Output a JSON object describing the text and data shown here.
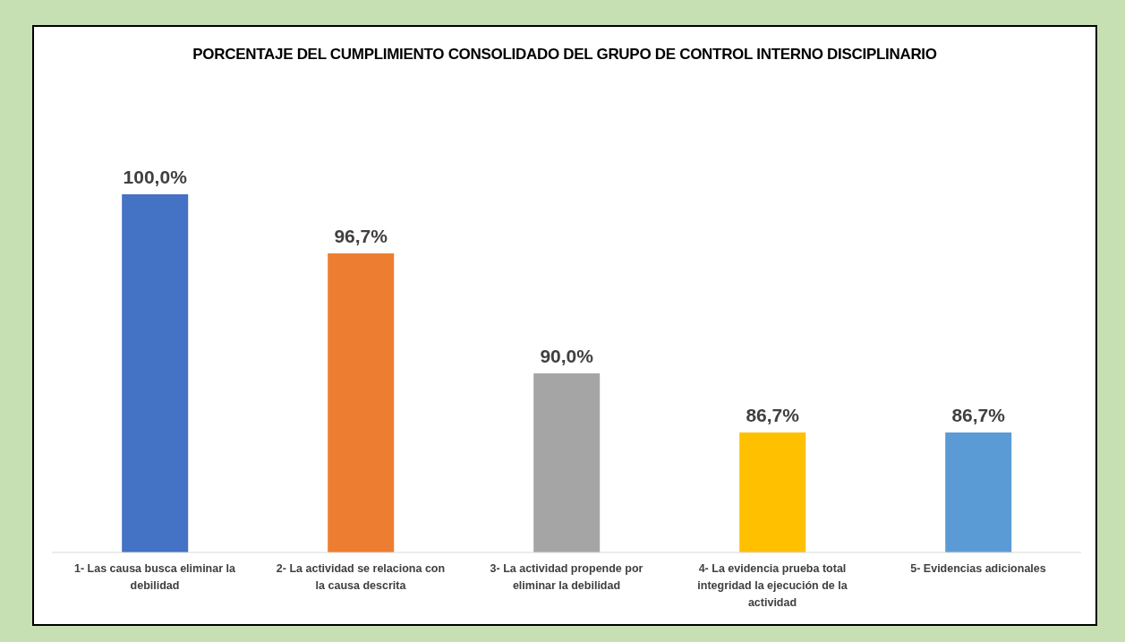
{
  "chart_data": {
    "type": "bar",
    "title": "PORCENTAJE DEL CUMPLIMIENTO CONSOLIDADO DEL GRUPO DE CONTROL INTERNO DISCIPLINARIO",
    "categories": [
      "1- Las causa busca eliminar la debilidad",
      "2- La actividad se relaciona con la causa descrita",
      "3- La actividad propende por eliminar la debilidad",
      "4- La evidencia prueba total integridad la ejecución de la actividad",
      "5- Evidencias adicionales"
    ],
    "values": [
      100,
      96.7,
      90,
      86.7,
      86.7
    ],
    "colors": [
      "#4472c4",
      "#ed7d31",
      "#a5a5a5",
      "#ffc000",
      "#5b9bd5"
    ],
    "value_labels": [
      "100,0%",
      "96,7%",
      "90,0%",
      "86,7%",
      "86,7%"
    ],
    "ylim": [
      80,
      100
    ],
    "tick_labels": "x",
    "grid": false,
    "legend": false
  }
}
